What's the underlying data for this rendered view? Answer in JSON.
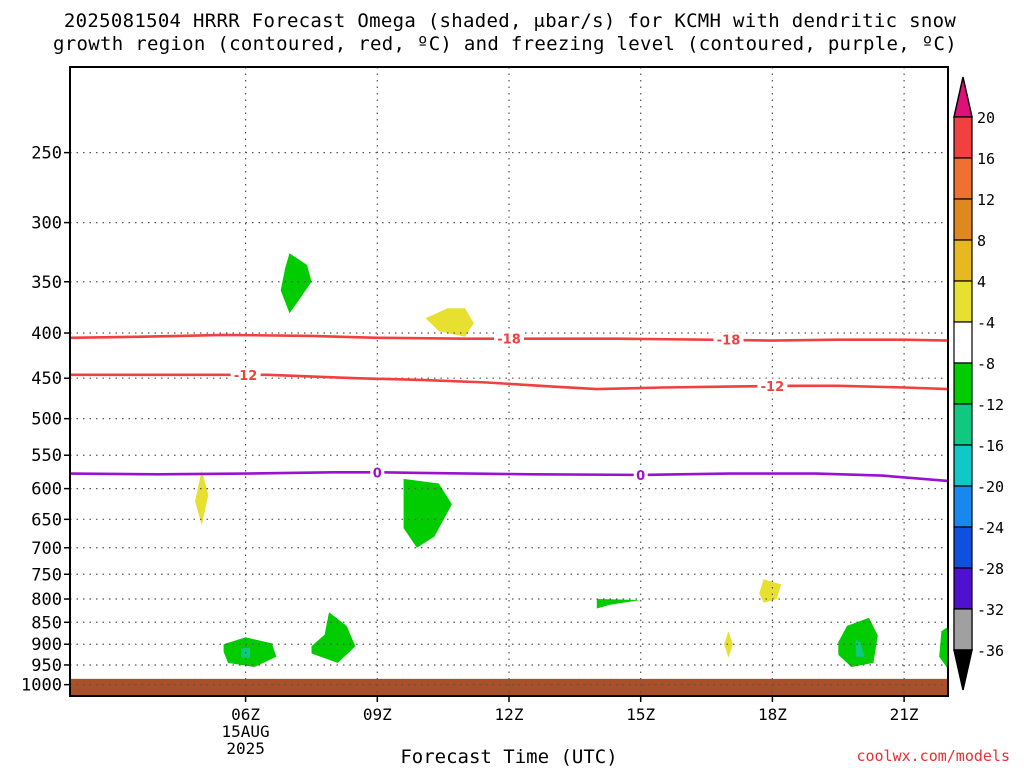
{
  "title_line1": "2025081504 HRRR Forecast Omega (shaded, μbar/s) for KCMH with dendritic snow",
  "title_line2": "growth region (contoured, red, ºC) and freezing level (contoured, purple, ºC)",
  "credit": "coolwx.com/models",
  "chart_data": {
    "type": "contour",
    "title": "2025081504 HRRR Forecast Omega (shaded, μbar/s) for KCMH with dendritic snow growth region (contoured, red, ºC) and freezing level (contoured, purple, ºC)",
    "xlabel": "Forecast Time (UTC)",
    "x_range_hours": [
      2.0,
      22.0
    ],
    "x_ticks": [
      {
        "hour": 6,
        "label": "06Z",
        "sub1": "15AUG",
        "sub2": "2025"
      },
      {
        "hour": 9,
        "label": "09Z",
        "sub1": "",
        "sub2": ""
      },
      {
        "hour": 12,
        "label": "12Z",
        "sub1": "",
        "sub2": ""
      },
      {
        "hour": 15,
        "label": "15Z",
        "sub1": "",
        "sub2": ""
      },
      {
        "hour": 18,
        "label": "18Z",
        "sub1": "",
        "sub2": ""
      },
      {
        "hour": 21,
        "label": "21Z",
        "sub1": "",
        "sub2": ""
      }
    ],
    "y_scale": "log-pressure",
    "y_range_hpa": [
      1030,
      200
    ],
    "y_ticks": [
      250,
      300,
      350,
      400,
      450,
      500,
      550,
      600,
      650,
      700,
      750,
      800,
      850,
      900,
      950,
      1000
    ],
    "grid": true,
    "surface_top_hpa": 985,
    "contours": [
      {
        "name": "-18",
        "color": "#f04040",
        "points": [
          [
            2.0,
            405
          ],
          [
            3.5,
            404
          ],
          [
            4.5,
            403
          ],
          [
            5.5,
            402
          ],
          [
            7.5,
            403
          ],
          [
            9.0,
            405
          ],
          [
            11.0,
            406
          ],
          [
            12.5,
            406
          ],
          [
            14.5,
            406
          ],
          [
            16.5,
            407
          ],
          [
            18.0,
            408
          ],
          [
            19.5,
            407
          ],
          [
            21.0,
            407
          ],
          [
            22.0,
            408
          ]
        ],
        "labels": [
          [
            12.0,
            406
          ],
          [
            17.0,
            407
          ]
        ]
      },
      {
        "name": "-12",
        "color": "#f04040",
        "points": [
          [
            2.0,
            446
          ],
          [
            4.0,
            446
          ],
          [
            6.5,
            446
          ],
          [
            8.5,
            450
          ],
          [
            10.0,
            452
          ],
          [
            11.5,
            455
          ],
          [
            13.0,
            460
          ],
          [
            14.0,
            463
          ],
          [
            15.5,
            461
          ],
          [
            17.0,
            460
          ],
          [
            18.5,
            459
          ],
          [
            19.5,
            459
          ],
          [
            21.0,
            461
          ],
          [
            22.0,
            463
          ]
        ],
        "labels": [
          [
            6.0,
            446
          ],
          [
            18.0,
            459
          ]
        ]
      },
      {
        "name": "0",
        "color": "#9a12d0",
        "points": [
          [
            2.0,
            577
          ],
          [
            4.0,
            578
          ],
          [
            6.0,
            577
          ],
          [
            8.0,
            575
          ],
          [
            9.0,
            575
          ],
          [
            10.0,
            576
          ],
          [
            12.5,
            578
          ],
          [
            15.0,
            579
          ],
          [
            17.0,
            577
          ],
          [
            19.0,
            577
          ],
          [
            20.5,
            580
          ],
          [
            22.0,
            588
          ]
        ],
        "labels": [
          [
            9.0,
            575
          ],
          [
            15.0,
            579
          ]
        ]
      }
    ],
    "shaded_regions": [
      {
        "level": "-4 to -8",
        "color": "#00cc00",
        "points": [
          [
            7.0,
            325
          ],
          [
            7.4,
            335
          ],
          [
            7.5,
            350
          ],
          [
            7.2,
            368
          ],
          [
            7.0,
            380
          ],
          [
            6.8,
            358
          ],
          [
            6.9,
            338
          ]
        ]
      },
      {
        "level": "4 to 8",
        "color": "#e8e030",
        "points": [
          [
            10.6,
            375
          ],
          [
            11.0,
            375
          ],
          [
            11.2,
            390
          ],
          [
            11.0,
            404
          ],
          [
            10.4,
            398
          ],
          [
            10.1,
            385
          ]
        ]
      },
      {
        "level": "4 to 8",
        "color": "#e8e030",
        "points": [
          [
            5.0,
            572
          ],
          [
            5.15,
            610
          ],
          [
            5.0,
            660
          ],
          [
            4.85,
            620
          ]
        ]
      },
      {
        "level": "-4 to -8",
        "color": "#00cc00",
        "points": [
          [
            9.6,
            585
          ],
          [
            10.4,
            592
          ],
          [
            10.7,
            625
          ],
          [
            10.3,
            680
          ],
          [
            9.9,
            700
          ],
          [
            9.6,
            665
          ],
          [
            9.6,
            612
          ]
        ]
      },
      {
        "level": "-4 to -8",
        "color": "#00cc00",
        "points": [
          [
            14.0,
            800
          ],
          [
            14.0,
            820
          ],
          [
            14.3,
            812
          ],
          [
            15.0,
            802
          ]
        ]
      },
      {
        "level": "4 to 8",
        "color": "#e8e030",
        "points": [
          [
            17.8,
            760
          ],
          [
            18.2,
            770
          ],
          [
            18.1,
            800
          ],
          [
            17.8,
            808
          ],
          [
            17.7,
            788
          ]
        ]
      },
      {
        "level": "4 to 8",
        "color": "#e8e030",
        "points": [
          [
            17.0,
            870
          ],
          [
            17.1,
            900
          ],
          [
            17.0,
            932
          ],
          [
            16.9,
            900
          ]
        ]
      },
      {
        "level": "-4 to -8",
        "color": "#00cc00",
        "points": [
          [
            5.5,
            900
          ],
          [
            6.0,
            884
          ],
          [
            6.6,
            898
          ],
          [
            6.7,
            930
          ],
          [
            6.2,
            955
          ],
          [
            5.6,
            945
          ],
          [
            5.5,
            918
          ]
        ]
      },
      {
        "level": "-8 to -12",
        "color": "#10c880",
        "points": [
          [
            5.9,
            910
          ],
          [
            6.1,
            908
          ],
          [
            6.1,
            932
          ],
          [
            5.9,
            932
          ]
        ]
      },
      {
        "level": "-4 to -8",
        "color": "#00cc00",
        "points": [
          [
            7.9,
            828
          ],
          [
            8.3,
            858
          ],
          [
            8.5,
            905
          ],
          [
            8.1,
            945
          ],
          [
            7.5,
            922
          ],
          [
            7.5,
            905
          ],
          [
            7.8,
            878
          ]
        ]
      },
      {
        "level": "-4 to -8",
        "color": "#00cc00",
        "points": [
          [
            19.7,
            858
          ],
          [
            20.2,
            840
          ],
          [
            20.4,
            880
          ],
          [
            20.3,
            945
          ],
          [
            19.8,
            955
          ],
          [
            19.5,
            925
          ],
          [
            19.5,
            895
          ]
        ]
      },
      {
        "level": "-8 to -12",
        "color": "#10c880",
        "points": [
          [
            19.9,
            890
          ],
          [
            20.0,
            895
          ],
          [
            20.1,
            930
          ],
          [
            19.9,
            930
          ]
        ]
      },
      {
        "level": "-4 to -8",
        "color": "#00cc00",
        "points": [
          [
            21.85,
            870
          ],
          [
            22.0,
            860
          ],
          [
            22.0,
            960
          ],
          [
            21.8,
            930
          ]
        ]
      }
    ],
    "colorbar": {
      "title": "",
      "labels": [
        "20",
        "16",
        "12",
        "8",
        "4",
        "-4",
        "-8",
        "-12",
        "-16",
        "-20",
        "-24",
        "-28",
        "-32",
        "-36"
      ],
      "colors": [
        "#f04040",
        "#f07030",
        "#e08820",
        "#e8b820",
        "#e8e030",
        "#ffffff",
        "#00cc00",
        "#10c880",
        "#10c8c8",
        "#1888f0",
        "#1050e0",
        "#5010d0",
        "#9010c8",
        "#a0a0a0"
      ],
      "top_arrow": "#e0107a",
      "bottom_arrow": "#000000"
    },
    "surface_color": "#a8502a"
  }
}
